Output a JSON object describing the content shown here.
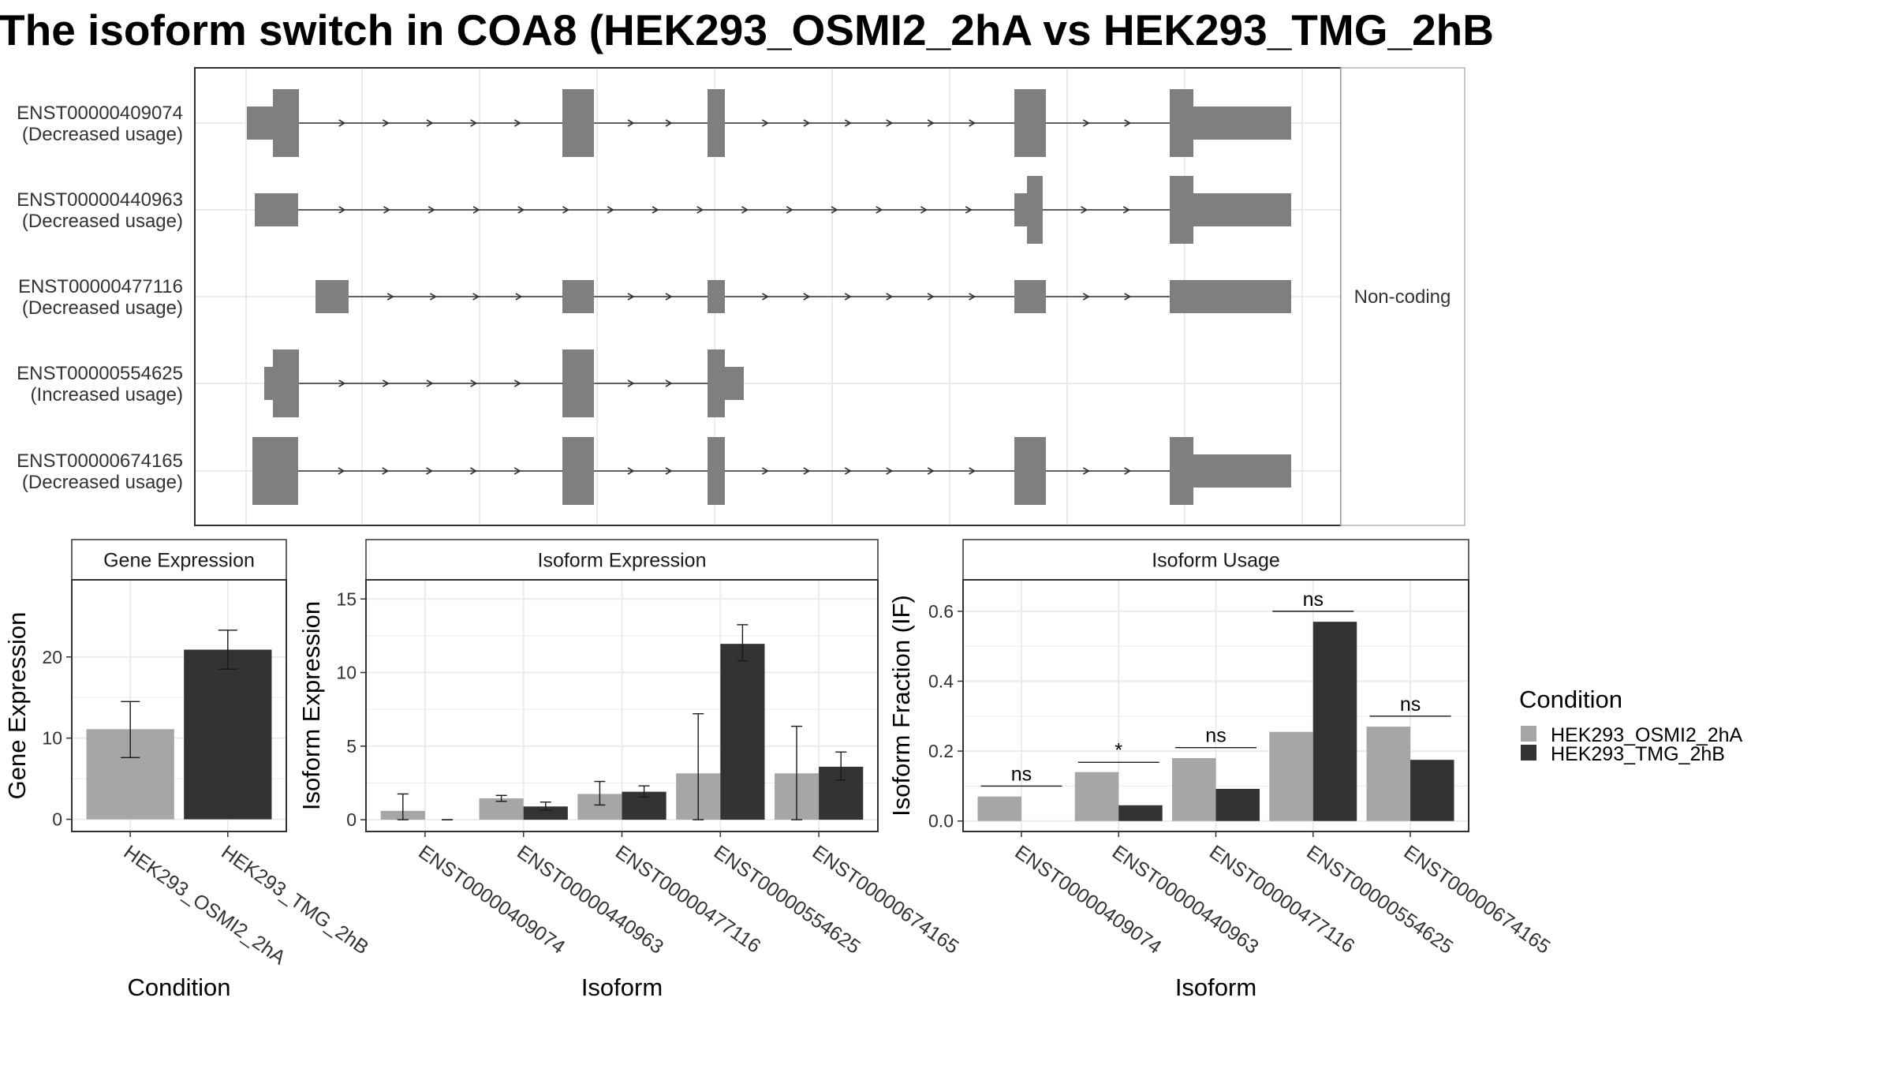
{
  "title": "The isoform switch in COA8 (HEK293_OSMI2_2hA vs HEK293_TMG_2hB",
  "colors": {
    "exon": "#7f7f7f",
    "cond1": "#a6a6a6",
    "cond2": "#333333",
    "grid": "#ebebeb",
    "strip_bg": "#ffffff",
    "panel_border": "#333333"
  },
  "chart_data": [
    {
      "type": "gene_structure",
      "panel_label": "Non-coding",
      "transcripts": [
        {
          "id": "ENST00000409074",
          "usage": "(Decreased usage)"
        },
        {
          "id": "ENST00000440963",
          "usage": "(Decreased usage)"
        },
        {
          "id": "ENST00000477116",
          "usage": "(Decreased usage)"
        },
        {
          "id": "ENST00000554625",
          "usage": "(Increased usage)"
        },
        {
          "id": "ENST00000674165",
          "usage": "(Decreased usage)"
        }
      ]
    },
    {
      "type": "bar",
      "strip": "Gene Expression",
      "xlabel": "Condition",
      "ylabel": "Gene Expression",
      "ylim": [
        -1.5,
        29.5
      ],
      "yticks": [
        0,
        10,
        20
      ],
      "categories": [
        "HEK293_OSMI2_2hA",
        "HEK293_TMG_2hB"
      ],
      "values": [
        11.1,
        20.9
      ],
      "errors": [
        [
          7.6,
          14.5
        ],
        [
          18.5,
          23.3
        ]
      ]
    },
    {
      "type": "bar",
      "strip": "Isoform Expression",
      "xlabel": "Isoform",
      "ylabel": "Isoform Expression",
      "ylim": [
        -0.8,
        16.3
      ],
      "yticks": [
        0,
        5,
        10,
        15
      ],
      "categories": [
        "ENST00000409074",
        "ENST00000440963",
        "ENST00000477116",
        "ENST00000554625",
        "ENST00000674165"
      ],
      "series": [
        {
          "name": "HEK293_OSMI2_2hA",
          "values": [
            0.6,
            1.45,
            1.75,
            3.15,
            3.15
          ],
          "errors": [
            [
              0.0,
              1.75
            ],
            [
              1.25,
              1.65
            ],
            [
              1.0,
              2.6
            ],
            [
              0.0,
              7.2
            ],
            [
              0.0,
              6.35
            ]
          ]
        },
        {
          "name": "HEK293_TMG_2hB",
          "values": [
            0.0,
            0.9,
            1.9,
            11.95,
            3.6
          ],
          "errors": [
            [
              0.0,
              0.0
            ],
            [
              0.65,
              1.2
            ],
            [
              1.55,
              2.3
            ],
            [
              10.8,
              13.25
            ],
            [
              2.7,
              4.6
            ]
          ]
        }
      ]
    },
    {
      "type": "bar",
      "strip": "Isoform Usage",
      "xlabel": "Isoform",
      "ylabel": "Isoform Fraction (IF)",
      "ylim": [
        -0.03,
        0.69
      ],
      "yticks": [
        0.0,
        0.2,
        0.4,
        0.6
      ],
      "categories": [
        "ENST00000409074",
        "ENST00000440963",
        "ENST00000477116",
        "ENST00000554625",
        "ENST00000674165"
      ],
      "series": [
        {
          "name": "HEK293_OSMI2_2hA",
          "values": [
            0.07,
            0.14,
            0.18,
            0.255,
            0.27
          ]
        },
        {
          "name": "HEK293_TMG_2hB",
          "values": [
            0.0,
            0.045,
            0.092,
            0.57,
            0.175
          ]
        }
      ],
      "significance": [
        "ns",
        "*",
        "ns",
        "ns",
        "ns"
      ],
      "sig_line_y": [
        0.1,
        0.168,
        0.21,
        0.6,
        0.3
      ]
    }
  ],
  "legend": {
    "title": "Condition",
    "items": [
      "HEK293_OSMI2_2hA",
      "HEK293_TMG_2hB"
    ]
  }
}
